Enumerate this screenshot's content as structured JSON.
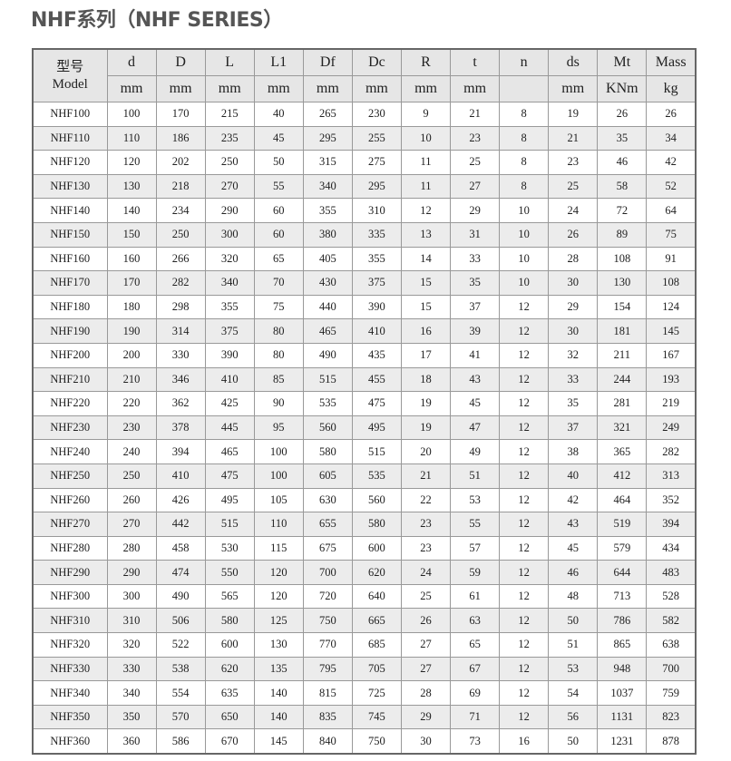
{
  "title": "NHF系列（NHF SERIES）",
  "table": {
    "model_header_cn": "型号",
    "model_header_en": "Model",
    "columns": [
      {
        "name": "d",
        "unit": "mm"
      },
      {
        "name": "D",
        "unit": "mm"
      },
      {
        "name": "L",
        "unit": "mm"
      },
      {
        "name": "L1",
        "unit": "mm"
      },
      {
        "name": "Df",
        "unit": "mm"
      },
      {
        "name": "Dc",
        "unit": "mm"
      },
      {
        "name": "R",
        "unit": "mm"
      },
      {
        "name": "t",
        "unit": "mm"
      },
      {
        "name": "n",
        "unit": ""
      },
      {
        "name": "ds",
        "unit": "mm"
      },
      {
        "name": "Mt",
        "unit": "KNm"
      },
      {
        "name": "Mass",
        "unit": "kg"
      }
    ],
    "rows": [
      [
        "NHF100",
        "100",
        "170",
        "215",
        "40",
        "265",
        "230",
        "9",
        "21",
        "8",
        "19",
        "26",
        "26"
      ],
      [
        "NHF110",
        "110",
        "186",
        "235",
        "45",
        "295",
        "255",
        "10",
        "23",
        "8",
        "21",
        "35",
        "34"
      ],
      [
        "NHF120",
        "120",
        "202",
        "250",
        "50",
        "315",
        "275",
        "11",
        "25",
        "8",
        "23",
        "46",
        "42"
      ],
      [
        "NHF130",
        "130",
        "218",
        "270",
        "55",
        "340",
        "295",
        "11",
        "27",
        "8",
        "25",
        "58",
        "52"
      ],
      [
        "NHF140",
        "140",
        "234",
        "290",
        "60",
        "355",
        "310",
        "12",
        "29",
        "10",
        "24",
        "72",
        "64"
      ],
      [
        "NHF150",
        "150",
        "250",
        "300",
        "60",
        "380",
        "335",
        "13",
        "31",
        "10",
        "26",
        "89",
        "75"
      ],
      [
        "NHF160",
        "160",
        "266",
        "320",
        "65",
        "405",
        "355",
        "14",
        "33",
        "10",
        "28",
        "108",
        "91"
      ],
      [
        "NHF170",
        "170",
        "282",
        "340",
        "70",
        "430",
        "375",
        "15",
        "35",
        "10",
        "30",
        "130",
        "108"
      ],
      [
        "NHF180",
        "180",
        "298",
        "355",
        "75",
        "440",
        "390",
        "15",
        "37",
        "12",
        "29",
        "154",
        "124"
      ],
      [
        "NHF190",
        "190",
        "314",
        "375",
        "80",
        "465",
        "410",
        "16",
        "39",
        "12",
        "30",
        "181",
        "145"
      ],
      [
        "NHF200",
        "200",
        "330",
        "390",
        "80",
        "490",
        "435",
        "17",
        "41",
        "12",
        "32",
        "211",
        "167"
      ],
      [
        "NHF210",
        "210",
        "346",
        "410",
        "85",
        "515",
        "455",
        "18",
        "43",
        "12",
        "33",
        "244",
        "193"
      ],
      [
        "NHF220",
        "220",
        "362",
        "425",
        "90",
        "535",
        "475",
        "19",
        "45",
        "12",
        "35",
        "281",
        "219"
      ],
      [
        "NHF230",
        "230",
        "378",
        "445",
        "95",
        "560",
        "495",
        "19",
        "47",
        "12",
        "37",
        "321",
        "249"
      ],
      [
        "NHF240",
        "240",
        "394",
        "465",
        "100",
        "580",
        "515",
        "20",
        "49",
        "12",
        "38",
        "365",
        "282"
      ],
      [
        "NHF250",
        "250",
        "410",
        "475",
        "100",
        "605",
        "535",
        "21",
        "51",
        "12",
        "40",
        "412",
        "313"
      ],
      [
        "NHF260",
        "260",
        "426",
        "495",
        "105",
        "630",
        "560",
        "22",
        "53",
        "12",
        "42",
        "464",
        "352"
      ],
      [
        "NHF270",
        "270",
        "442",
        "515",
        "110",
        "655",
        "580",
        "23",
        "55",
        "12",
        "43",
        "519",
        "394"
      ],
      [
        "NHF280",
        "280",
        "458",
        "530",
        "115",
        "675",
        "600",
        "23",
        "57",
        "12",
        "45",
        "579",
        "434"
      ],
      [
        "NHF290",
        "290",
        "474",
        "550",
        "120",
        "700",
        "620",
        "24",
        "59",
        "12",
        "46",
        "644",
        "483"
      ],
      [
        "NHF300",
        "300",
        "490",
        "565",
        "120",
        "720",
        "640",
        "25",
        "61",
        "12",
        "48",
        "713",
        "528"
      ],
      [
        "NHF310",
        "310",
        "506",
        "580",
        "125",
        "750",
        "665",
        "26",
        "63",
        "12",
        "50",
        "786",
        "582"
      ],
      [
        "NHF320",
        "320",
        "522",
        "600",
        "130",
        "770",
        "685",
        "27",
        "65",
        "12",
        "51",
        "865",
        "638"
      ],
      [
        "NHF330",
        "330",
        "538",
        "620",
        "135",
        "795",
        "705",
        "27",
        "67",
        "12",
        "53",
        "948",
        "700"
      ],
      [
        "NHF340",
        "340",
        "554",
        "635",
        "140",
        "815",
        "725",
        "28",
        "69",
        "12",
        "54",
        "1037",
        "759"
      ],
      [
        "NHF350",
        "350",
        "570",
        "650",
        "140",
        "835",
        "745",
        "29",
        "71",
        "12",
        "56",
        "1131",
        "823"
      ],
      [
        "NHF360",
        "360",
        "586",
        "670",
        "145",
        "840",
        "750",
        "30",
        "73",
        "16",
        "50",
        "1231",
        "878"
      ]
    ]
  }
}
